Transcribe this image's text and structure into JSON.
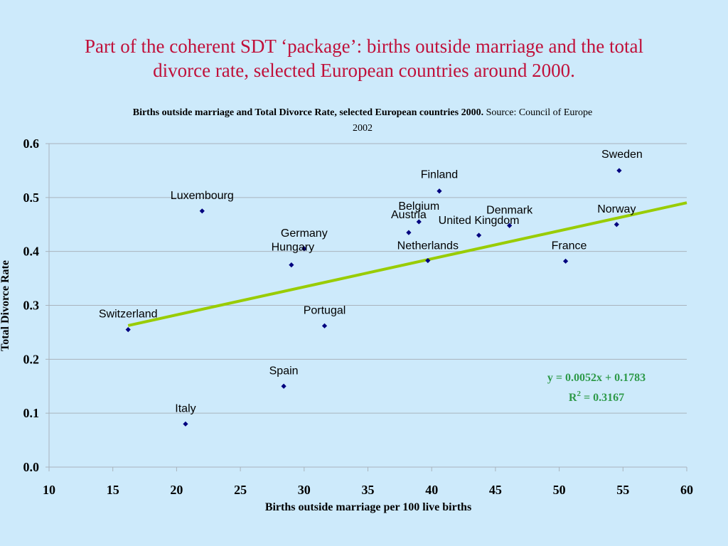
{
  "slide": {
    "title_line1": "Part of the coherent SDT ‘package’: births outside marriage and the total",
    "title_line2": "divorce rate, selected European countries around 2000."
  },
  "chart_data": {
    "type": "scatter",
    "title_bold": "Births outside marriage  and Total Divorce Rate, selected European countries 2000.",
    "title_source": "Source: Council of Europe",
    "title_year": "2002",
    "xlabel": "Births outside marriage per 100 live births",
    "ylabel": "Total Divorce Rate",
    "xlim": [
      10,
      60
    ],
    "ylim": [
      0,
      0.6
    ],
    "x_ticks": [
      "10",
      "15",
      "20",
      "25",
      "30",
      "35",
      "40",
      "45",
      "50",
      "55",
      "60"
    ],
    "y_ticks": [
      "0.0",
      "0.1",
      "0.2",
      "0.3",
      "0.4",
      "0.5",
      "0.6"
    ],
    "grid": "horizontal",
    "points": [
      {
        "name": "Sweden",
        "x": 54.7,
        "y": 0.55
      },
      {
        "name": "Finland",
        "x": 40.6,
        "y": 0.512
      },
      {
        "name": "Luxembourg",
        "x": 22.0,
        "y": 0.475
      },
      {
        "name": "Belgium",
        "x": 39.0,
        "y": 0.455
      },
      {
        "name": "Norway",
        "x": 54.5,
        "y": 0.45
      },
      {
        "name": "Denmark",
        "x": 46.1,
        "y": 0.448
      },
      {
        "name": "Austria",
        "x": 38.2,
        "y": 0.435
      },
      {
        "name": "United Kingdom",
        "x": 43.7,
        "y": 0.43
      },
      {
        "name": "Germany",
        "x": 30.0,
        "y": 0.405
      },
      {
        "name": "Netherlands",
        "x": 39.7,
        "y": 0.383
      },
      {
        "name": "France",
        "x": 50.5,
        "y": 0.382
      },
      {
        "name": "Hungary",
        "x": 29.0,
        "y": 0.375
      },
      {
        "name": "Portugal",
        "x": 31.6,
        "y": 0.262
      },
      {
        "name": "Switzerland",
        "x": 16.2,
        "y": 0.255
      },
      {
        "name": "Spain",
        "x": 28.4,
        "y": 0.15
      },
      {
        "name": "Italy",
        "x": 20.7,
        "y": 0.08
      }
    ],
    "trendline": {
      "slope": 0.0052,
      "intercept": 0.1783,
      "x_range": [
        16.2,
        60
      ],
      "equation": "y = 0.0052x + 0.1783",
      "r2_prefix": "R",
      "r2_sup": "2",
      "r2_suffix": " = 0.3167"
    },
    "colors": {
      "marker": "#00007f",
      "trendline": "#99cc00",
      "grid": "#a9b3bc",
      "title": "#c0103a",
      "equation": "#2e9a4a",
      "background": "#cdeafb"
    }
  }
}
